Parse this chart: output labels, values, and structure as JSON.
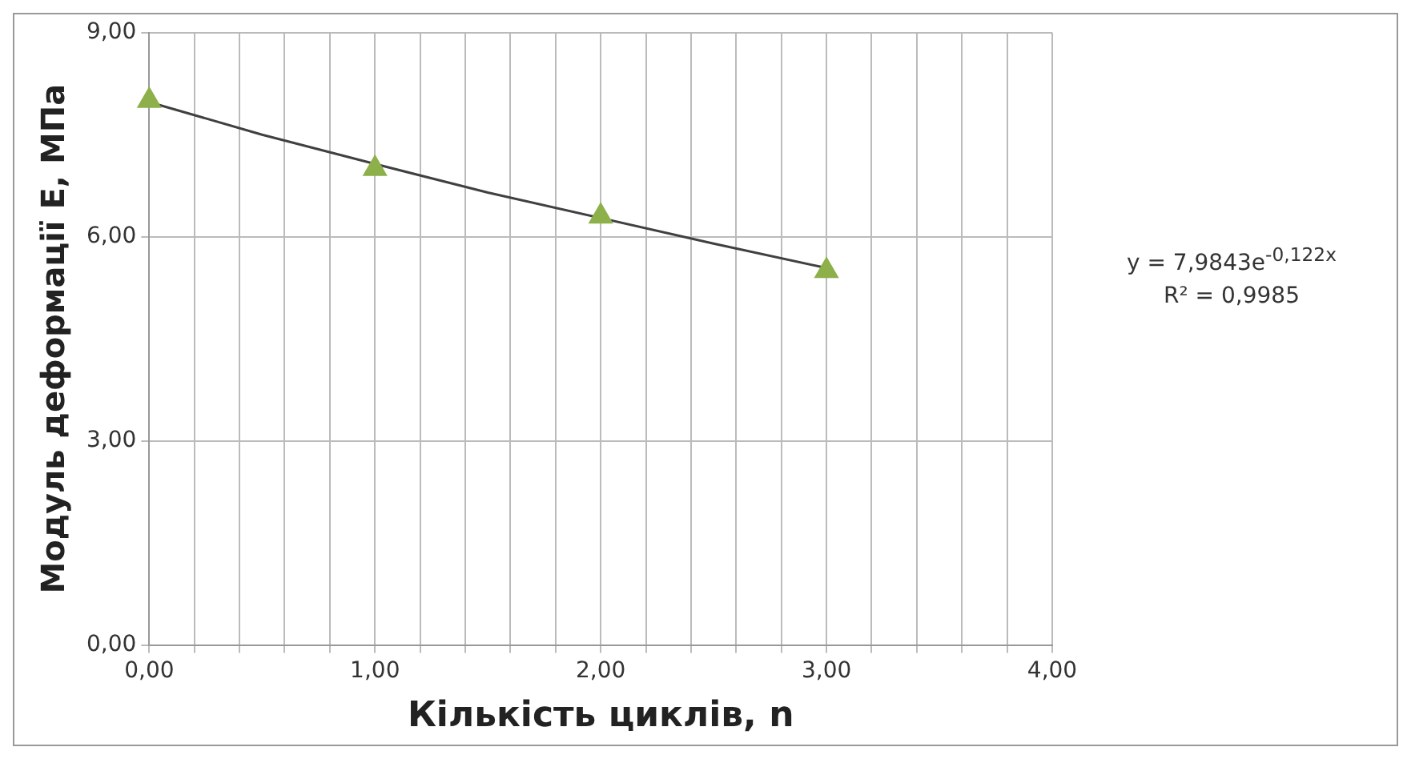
{
  "chart_data": {
    "type": "scatter",
    "xlabel": "Кількість циклів, n",
    "ylabel": "Модуль деформації Е, МПа",
    "series": [
      {
        "color": "#8db04a",
        "marker": "triangle",
        "x": [
          0,
          1,
          2,
          3
        ],
        "values": [
          8.0,
          7.0,
          6.3,
          5.5
        ]
      },
      {
        "type": "line",
        "color": "#404040",
        "marker": "none",
        "line_style": "solid",
        "x": [
          0,
          0.5,
          1,
          1.5,
          2.5,
          3
        ],
        "values": [
          7.98,
          7.5,
          7.07,
          6.65,
          5.9,
          5.54
        ]
      }
    ],
    "xlim": [
      0,
      4
    ],
    "xticks": [
      {
        "value": 0,
        "label": "0,00"
      },
      {
        "value": 0.2,
        "label": null
      },
      {
        "value": 0.4,
        "label": null
      },
      {
        "value": 0.6,
        "label": null
      },
      {
        "value": 0.8,
        "label": null
      },
      {
        "value": 1,
        "label": "1,00"
      },
      {
        "value": 1.2,
        "label": null
      },
      {
        "value": 1.4,
        "label": null
      },
      {
        "value": 1.6,
        "label": null
      },
      {
        "value": 1.8,
        "label": null
      },
      {
        "value": 2,
        "label": "2,00"
      },
      {
        "value": 2.2,
        "label": null
      },
      {
        "value": 2.4,
        "label": null
      },
      {
        "value": 2.6,
        "label": null
      },
      {
        "value": 2.8,
        "label": null
      },
      {
        "value": 3,
        "label": "3,00"
      },
      {
        "value": 3.2,
        "label": null
      },
      {
        "value": 3.4,
        "label": null
      },
      {
        "value": 3.6,
        "label": null
      },
      {
        "value": 3.8,
        "label": null
      },
      {
        "value": 4,
        "label": "4,00"
      }
    ],
    "ylim": [
      0,
      9
    ],
    "yticks": [
      {
        "value": 0,
        "label": "0,00"
      },
      {
        "value": 3,
        "label": "3,00"
      },
      {
        "value": 6,
        "label": "6,00"
      },
      {
        "value": 9,
        "label": "9,00"
      }
    ],
    "grid": true,
    "legend": false,
    "annotations": [
      "y = 7,9843e$^{-0,122x}$",
      "R² = 0,9985"
    ]
  }
}
